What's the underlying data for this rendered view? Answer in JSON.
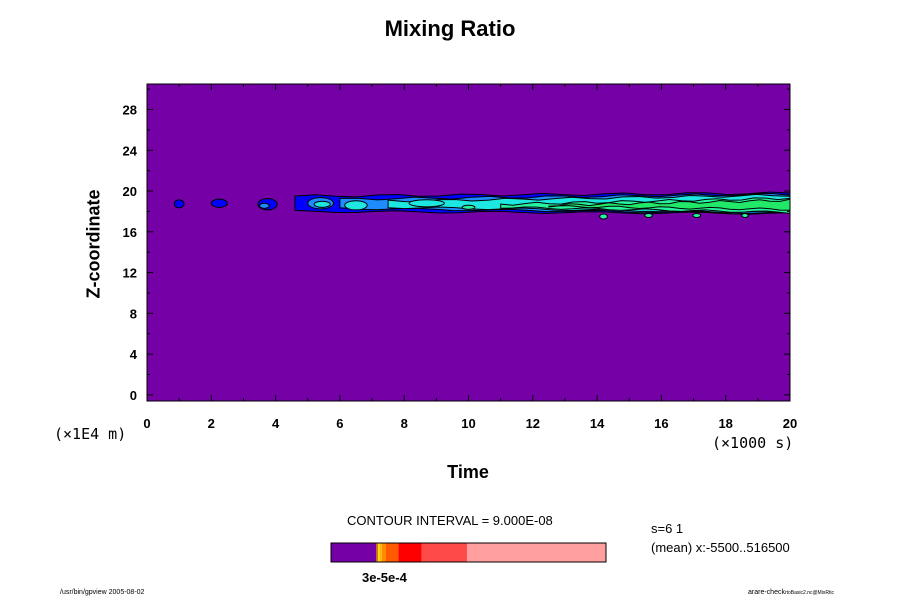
{
  "chart_data": {
    "type": "contour",
    "title": "Mixing Ratio",
    "xlabel": "Time",
    "ylabel": "Z-coordinate",
    "x_unit": "(×1000 s)",
    "y_unit": "(×1E4 m)",
    "xlim": [
      0,
      20
    ],
    "ylim": [
      -0.6,
      30.5
    ],
    "x_ticks": [
      0,
      2,
      4,
      6,
      8,
      10,
      12,
      14,
      16,
      18,
      20
    ],
    "y_ticks": [
      0,
      4,
      8,
      12,
      16,
      20,
      24,
      28
    ],
    "background_color": "#7500a6",
    "levels": [
      {
        "level": 1,
        "color": "#0000ff",
        "mask": 1
      },
      {
        "level": 2,
        "color": "#1e8bff",
        "mask": 2
      },
      {
        "level": 3,
        "color": "#1ee6e0",
        "mask": 2
      },
      {
        "level": 4,
        "color": "#27f2a0",
        "mask": 4
      },
      {
        "level": 5,
        "color": "#21e868",
        "mask": 8
      }
    ],
    "features": [
      {
        "x": 1.0,
        "y": 18.75,
        "rx": 0.15,
        "ry": 0.4,
        "level": 1
      },
      {
        "x": 2.25,
        "y": 18.8,
        "rx": 0.25,
        "ry": 0.4,
        "level": 1
      },
      {
        "x": 3.75,
        "y": 18.7,
        "rx": 0.3,
        "ry": 0.55,
        "level": 1
      },
      {
        "x": 3.65,
        "y": 18.55,
        "rx": 0.15,
        "ry": 0.25,
        "level": 2
      },
      {
        "x": 5.4,
        "y": 18.8,
        "rx": 0.4,
        "ry": 0.55,
        "level": 2
      },
      {
        "x": 5.45,
        "y": 18.7,
        "rx": 0.25,
        "ry": 0.3,
        "level": 3
      },
      {
        "x": 6.5,
        "y": 18.6,
        "rx": 0.35,
        "ry": 0.45,
        "level": 3
      },
      {
        "x": 8.7,
        "y": 18.8,
        "rx": 0.55,
        "ry": 0.35,
        "level": 3
      },
      {
        "x": 10.0,
        "y": 18.4,
        "rx": 0.2,
        "ry": 0.2,
        "level": 4
      },
      {
        "x": 14.2,
        "y": 17.5,
        "rx": 0.12,
        "ry": 0.25,
        "level": 4
      },
      {
        "x": 15.6,
        "y": 17.6,
        "rx": 0.12,
        "ry": 0.2,
        "level": 4
      },
      {
        "x": 17.1,
        "y": 17.6,
        "rx": 0.12,
        "ry": 0.2,
        "level": 4
      },
      {
        "x": 18.6,
        "y": 17.6,
        "rx": 0.1,
        "ry": 0.2,
        "level": 4
      }
    ],
    "bands": [
      {
        "level": 1,
        "x_start": 4.6,
        "x_end": 20,
        "top_start": 19.5,
        "top_end": 19.8,
        "bottom_start": 18.0,
        "bottom_end": 17.8
      },
      {
        "level": 2,
        "x_start": 6.0,
        "x_end": 20,
        "top_start": 19.2,
        "top_end": 19.7,
        "bottom_start": 18.3,
        "bottom_end": 17.8
      },
      {
        "level": 3,
        "x_start": 7.5,
        "x_end": 20,
        "top_start": 19.0,
        "top_end": 19.6,
        "bottom_start": 18.4,
        "bottom_end": 17.9
      },
      {
        "level": 4,
        "x_start": 11.0,
        "x_end": 20,
        "top_start": 18.7,
        "top_end": 19.3,
        "bottom_start": 18.4,
        "bottom_end": 17.9
      },
      {
        "level": 5,
        "x_start": 12.5,
        "x_end": 20,
        "top_start": 18.6,
        "top_end": 19.1,
        "bottom_start": 18.5,
        "bottom_end": 18.2
      }
    ]
  },
  "colorbar": {
    "segments": [
      {
        "color": "#7500a6",
        "fraction": 0.165
      },
      {
        "color": "#d08000",
        "fraction": 0.006
      },
      {
        "color": "#ffd700",
        "fraction": 0.006
      },
      {
        "color": "#ffb400",
        "fraction": 0.008
      },
      {
        "color": "#ff8c00",
        "fraction": 0.015
      },
      {
        "color": "#ff5a00",
        "fraction": 0.045
      },
      {
        "color": "#ff0000",
        "fraction": 0.085
      },
      {
        "color": "#ff4a4a",
        "fraction": 0.165
      },
      {
        "color": "#ff9f9f",
        "fraction": 0.505
      }
    ],
    "labels_text": "3e-5e-4"
  },
  "annotations": {
    "contour_interval": "CONTOUR INTERVAL = 9.000E-08",
    "stats_line1": "s=6 1",
    "stats_line2": "(mean) x:-5500..516500",
    "footer_left": "/usr/bin/gpview 2005-08-02",
    "footer_right_main": "arare-check",
    "footer_right_sub": "rtoBasic2.nc@MixRtic"
  }
}
